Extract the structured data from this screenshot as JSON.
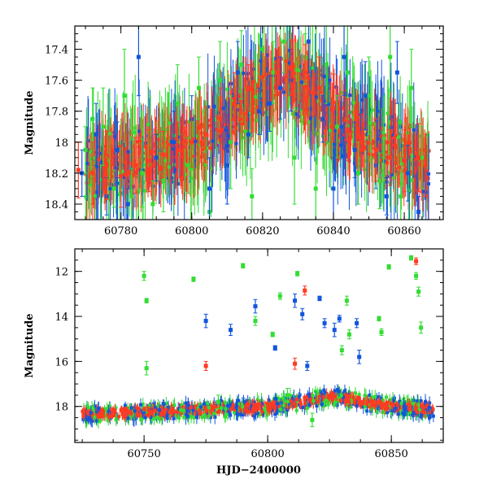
{
  "colors": {
    "green": "#33dd33",
    "blue": "#1155dd",
    "red": "#ff3b22",
    "black": "#000000"
  },
  "chart_data": [
    {
      "type": "scatter",
      "panel": "top",
      "xlabel": "",
      "ylabel": "Magnitude",
      "xlim": [
        60767,
        60871
      ],
      "ylim": [
        18.5,
        17.25
      ],
      "y_inverted": true,
      "xticks": [
        60780,
        60800,
        60820,
        60840,
        60860
      ],
      "yticks": [
        17.4,
        17.6,
        17.8,
        18,
        18.2,
        18.4
      ],
      "grid": false,
      "legend": "none",
      "series": [
        {
          "color": "green",
          "x": [
            60770,
            60772,
            60775,
            60778,
            60781,
            60783,
            60786,
            60789,
            60792,
            60796,
            60799,
            60802,
            60805,
            60808,
            60811,
            60814,
            60817,
            60820,
            60823,
            60826,
            60829,
            60832,
            60835,
            60838,
            60841,
            60844,
            60847,
            60850,
            60853,
            60856,
            60859,
            60862,
            60865
          ],
          "y": [
            18.05,
            17.85,
            17.9,
            18.3,
            17.7,
            18.35,
            18.2,
            18.4,
            18.25,
            17.75,
            18.15,
            17.65,
            18.45,
            17.6,
            18.0,
            17.5,
            18.35,
            17.4,
            17.55,
            17.35,
            18.1,
            17.45,
            18.3,
            17.5,
            17.9,
            17.55,
            18.2,
            17.7,
            18.25,
            17.45,
            18.35,
            17.65,
            18.1
          ],
          "err": [
            0.15,
            0.2,
            0.25,
            0.12,
            0.3,
            0.18,
            0.22,
            0.15,
            0.2,
            0.25,
            0.18,
            0.2,
            0.15,
            0.25,
            0.3,
            0.22,
            0.18,
            0.25,
            0.2,
            0.2,
            0.3,
            0.15,
            0.2,
            0.25,
            0.2,
            0.3,
            0.2,
            0.25,
            0.18,
            0.22,
            0.15,
            0.25,
            0.2
          ]
        },
        {
          "color": "blue",
          "x": [
            60769,
            60773,
            60776,
            60779,
            60782,
            60785,
            60790,
            60795,
            60800,
            60805,
            60810,
            60813,
            60816,
            60819,
            60822,
            60825,
            60828,
            60833,
            60837,
            60840,
            60843,
            60846,
            60849,
            60852,
            60855,
            60858,
            60861,
            60864
          ],
          "y": [
            18.2,
            17.95,
            18.35,
            18.05,
            18.4,
            17.45,
            18.1,
            18.0,
            17.85,
            18.3,
            18.15,
            17.55,
            17.95,
            17.8,
            17.75,
            17.65,
            17.6,
            17.35,
            17.85,
            18.3,
            17.45,
            18.05,
            17.7,
            18.15,
            18.35,
            17.55,
            18.2,
            18.45
          ],
          "err": [
            0.15,
            0.2,
            0.12,
            0.18,
            0.1,
            0.25,
            0.15,
            0.2,
            0.15,
            0.2,
            0.25,
            0.2,
            0.15,
            0.15,
            0.18,
            0.2,
            0.2,
            0.2,
            0.15,
            0.2,
            0.25,
            0.18,
            0.22,
            0.15,
            0.12,
            0.2,
            0.18,
            0.1
          ]
        },
        {
          "color": "red",
          "x": [
            60768,
            60772,
            60776,
            60780,
            60784,
            60788,
            60792,
            60796,
            60800,
            60804,
            60808,
            60812,
            60816,
            60820,
            60824,
            60828,
            60832,
            60836,
            60840,
            60844,
            60848,
            60852,
            60856,
            60860,
            60864,
            60866
          ],
          "y": [
            18.18,
            18.2,
            18.15,
            18.22,
            18.15,
            18.12,
            18.08,
            18.05,
            18.0,
            17.95,
            17.85,
            17.75,
            17.65,
            17.58,
            17.55,
            17.52,
            17.55,
            17.65,
            17.78,
            17.92,
            18.0,
            18.05,
            18.1,
            18.12,
            18.1,
            18.15
          ],
          "err": [
            0.18,
            0.2,
            0.22,
            0.2,
            0.18,
            0.2,
            0.15,
            0.18,
            0.16,
            0.18,
            0.2,
            0.2,
            0.15,
            0.15,
            0.15,
            0.18,
            0.18,
            0.2,
            0.22,
            0.2,
            0.18,
            0.2,
            0.18,
            0.2,
            0.22,
            0.2
          ]
        }
      ]
    },
    {
      "type": "scatter",
      "panel": "bottom",
      "xlabel": "HJD−2400000",
      "ylabel": "Magnitude",
      "xlim": [
        60722,
        60871
      ],
      "ylim": [
        19.6,
        11.0
      ],
      "y_inverted": true,
      "xticks": [
        60750,
        60800,
        60850
      ],
      "yticks": [
        12,
        14,
        16,
        18
      ],
      "grid": false,
      "legend": "none",
      "series": [
        {
          "color": "green",
          "x": [
            60750,
            60751,
            60770,
            60790,
            60795,
            60802,
            60805,
            60808,
            60812,
            60818,
            60832,
            60833,
            60845,
            60846,
            60849,
            60858,
            60860,
            60861,
            60862,
            60751,
            60780,
            60830
          ],
          "y": [
            12.2,
            13.3,
            12.35,
            11.75,
            14.2,
            14.8,
            13.1,
            17.5,
            12.1,
            18.6,
            13.3,
            14.8,
            14.1,
            14.7,
            11.8,
            11.4,
            12.2,
            12.9,
            14.5,
            16.3,
            17.8,
            15.5
          ],
          "err": [
            0.2,
            0.1,
            0.1,
            0.1,
            0.2,
            0.1,
            0.15,
            0.3,
            0.1,
            0.3,
            0.2,
            0.2,
            0.1,
            0.15,
            0.1,
            0.1,
            0.15,
            0.2,
            0.25,
            0.3,
            0.3,
            0.2
          ]
        },
        {
          "color": "blue",
          "x": [
            60775,
            60785,
            60795,
            60803,
            60811,
            60814,
            60816,
            60821,
            60823,
            60827,
            60829,
            60836,
            60837
          ],
          "y": [
            14.2,
            14.6,
            13.55,
            15.4,
            13.3,
            13.9,
            16.2,
            13.2,
            14.3,
            14.6,
            14.1,
            14.3,
            15.8
          ],
          "err": [
            0.3,
            0.25,
            0.3,
            0.1,
            0.3,
            0.25,
            0.2,
            0.1,
            0.2,
            0.3,
            0.15,
            0.2,
            0.3
          ]
        },
        {
          "color": "red",
          "x": [
            60775,
            60811,
            60815,
            60860
          ],
          "y": [
            16.2,
            16.1,
            12.85,
            11.55
          ],
          "err": [
            0.2,
            0.25,
            0.2,
            0.15
          ]
        }
      ]
    }
  ]
}
